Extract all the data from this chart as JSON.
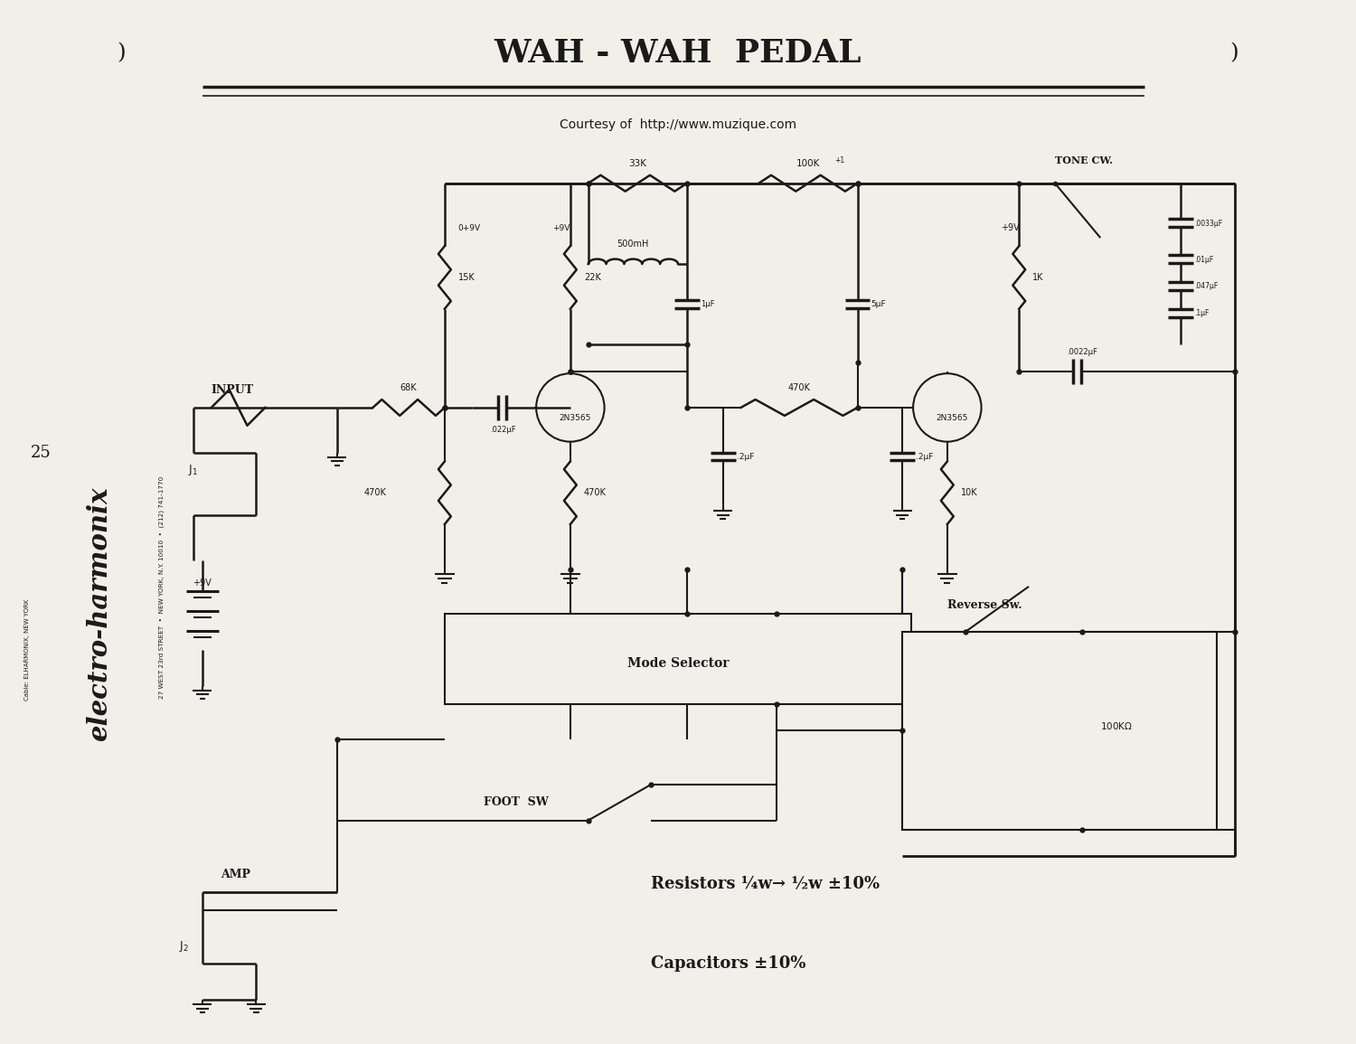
{
  "title": "WAH - WAH  PEDAL",
  "subtitle": "Courtesy of  http://www.muzique.com",
  "bg_color": "#f2efe9",
  "line_color": "#1a1a1a",
  "address_text": "27 WEST 23rd STREET  •  NEW YORK, N.Y. 10010  •  (212) 741-1770",
  "cable_text": "Cable: ELHARMONIX, NEW YORK",
  "page_num": "25",
  "resistor_note": "Resistors ¼w→ ½w ±10%",
  "capacitor_note": "Capacitors ±10%"
}
